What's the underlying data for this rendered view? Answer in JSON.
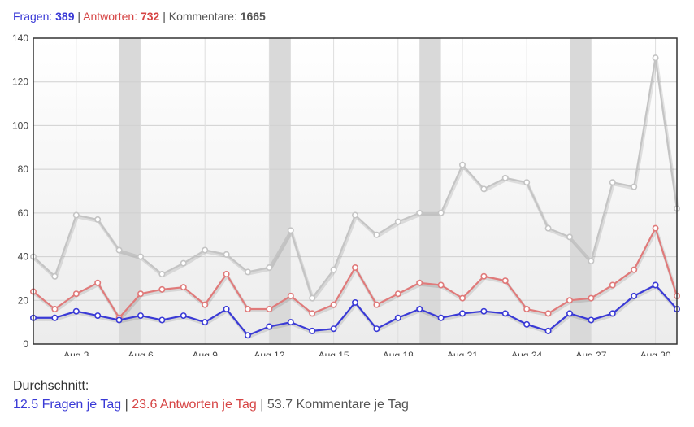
{
  "header": {
    "questions_label": "Fragen:",
    "questions_value": "389",
    "answers_label": "Antworten:",
    "answers_value": "732",
    "comments_label": "Kommentare:",
    "comments_value": "1665",
    "separator": "|"
  },
  "averages": {
    "title": "Durchschnitt:",
    "questions": "12.5 Fragen je Tag",
    "answers": "23.6 Antworten je Tag",
    "comments": "53.7 Kommentare je Tag",
    "separator": "|"
  },
  "colors": {
    "questions": "#3a3ad6",
    "answers": "#e07a7a",
    "comments": "#c4c4c4",
    "weekend_band": "#d9d9d9"
  },
  "chart_data": {
    "type": "line",
    "x_range": [
      "Aug 1",
      "Aug 31"
    ],
    "ylim": [
      0,
      140
    ],
    "y_ticks": [
      0,
      20,
      40,
      60,
      80,
      100,
      120,
      140
    ],
    "x_tick_labels": [
      {
        "day": 3,
        "label": "Aug 3"
      },
      {
        "day": 6,
        "label": "Aug 6"
      },
      {
        "day": 9,
        "label": "Aug 9"
      },
      {
        "day": 12,
        "label": "Aug 12"
      },
      {
        "day": 15,
        "label": "Aug 15"
      },
      {
        "day": 18,
        "label": "Aug 18"
      },
      {
        "day": 21,
        "label": "Aug 21"
      },
      {
        "day": 24,
        "label": "Aug 24"
      },
      {
        "day": 27,
        "label": "Aug 27"
      },
      {
        "day": 30,
        "label": "Aug 30"
      }
    ],
    "weekend_bands": [
      [
        5,
        6
      ],
      [
        12,
        13
      ],
      [
        19,
        20
      ],
      [
        26,
        27
      ]
    ],
    "grid": true,
    "days": [
      1,
      2,
      3,
      4,
      5,
      6,
      7,
      8,
      9,
      10,
      11,
      12,
      13,
      14,
      15,
      16,
      17,
      18,
      19,
      20,
      21,
      22,
      23,
      24,
      25,
      26,
      27,
      28,
      29,
      30,
      31
    ],
    "series": [
      {
        "key": "comments",
        "values": [
          40,
          31,
          59,
          57,
          43,
          40,
          32,
          37,
          43,
          41,
          33,
          35,
          52,
          21,
          34,
          59,
          50,
          56,
          60,
          60,
          82,
          71,
          76,
          74,
          53,
          49,
          38,
          74,
          72,
          131,
          62
        ]
      },
      {
        "key": "answers",
        "values": [
          24,
          16,
          23,
          28,
          12,
          23,
          25,
          26,
          18,
          32,
          16,
          16,
          22,
          14,
          18,
          35,
          18,
          23,
          28,
          27,
          21,
          31,
          29,
          16,
          14,
          20,
          21,
          27,
          34,
          53,
          22
        ]
      },
      {
        "key": "questions",
        "values": [
          12,
          12,
          15,
          13,
          11,
          13,
          11,
          13,
          10,
          16,
          4,
          8,
          10,
          6,
          7,
          19,
          7,
          12,
          16,
          12,
          14,
          15,
          14,
          9,
          6,
          14,
          11,
          14,
          22,
          27,
          16
        ]
      }
    ]
  }
}
